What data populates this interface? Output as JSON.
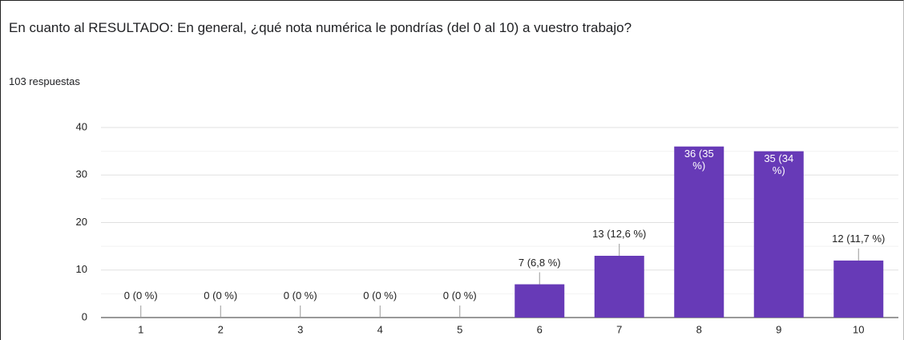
{
  "chart_data": {
    "type": "bar",
    "title": "En cuanto al RESULTADO: En general, ¿qué nota numérica le pondrías (del 0 al 10) a vuestro trabajo?",
    "subtitle": "103 respuestas",
    "categories": [
      "1",
      "2",
      "3",
      "4",
      "5",
      "6",
      "7",
      "8",
      "9",
      "10"
    ],
    "values": [
      0,
      0,
      0,
      0,
      0,
      7,
      13,
      36,
      35,
      12
    ],
    "value_labels": [
      "0 (0 %)",
      "0 (0 %)",
      "0 (0 %)",
      "0 (0 %)",
      "0 (0 %)",
      "7 (6,8 %)",
      "13 (12,6 %)",
      "36 (35 %)",
      "35 (34 %)",
      "12 (11,7 %)"
    ],
    "color": "#673ab7",
    "ylim": [
      0,
      40
    ],
    "yticks": [
      0,
      10,
      20,
      30,
      40
    ],
    "grid": true
  }
}
